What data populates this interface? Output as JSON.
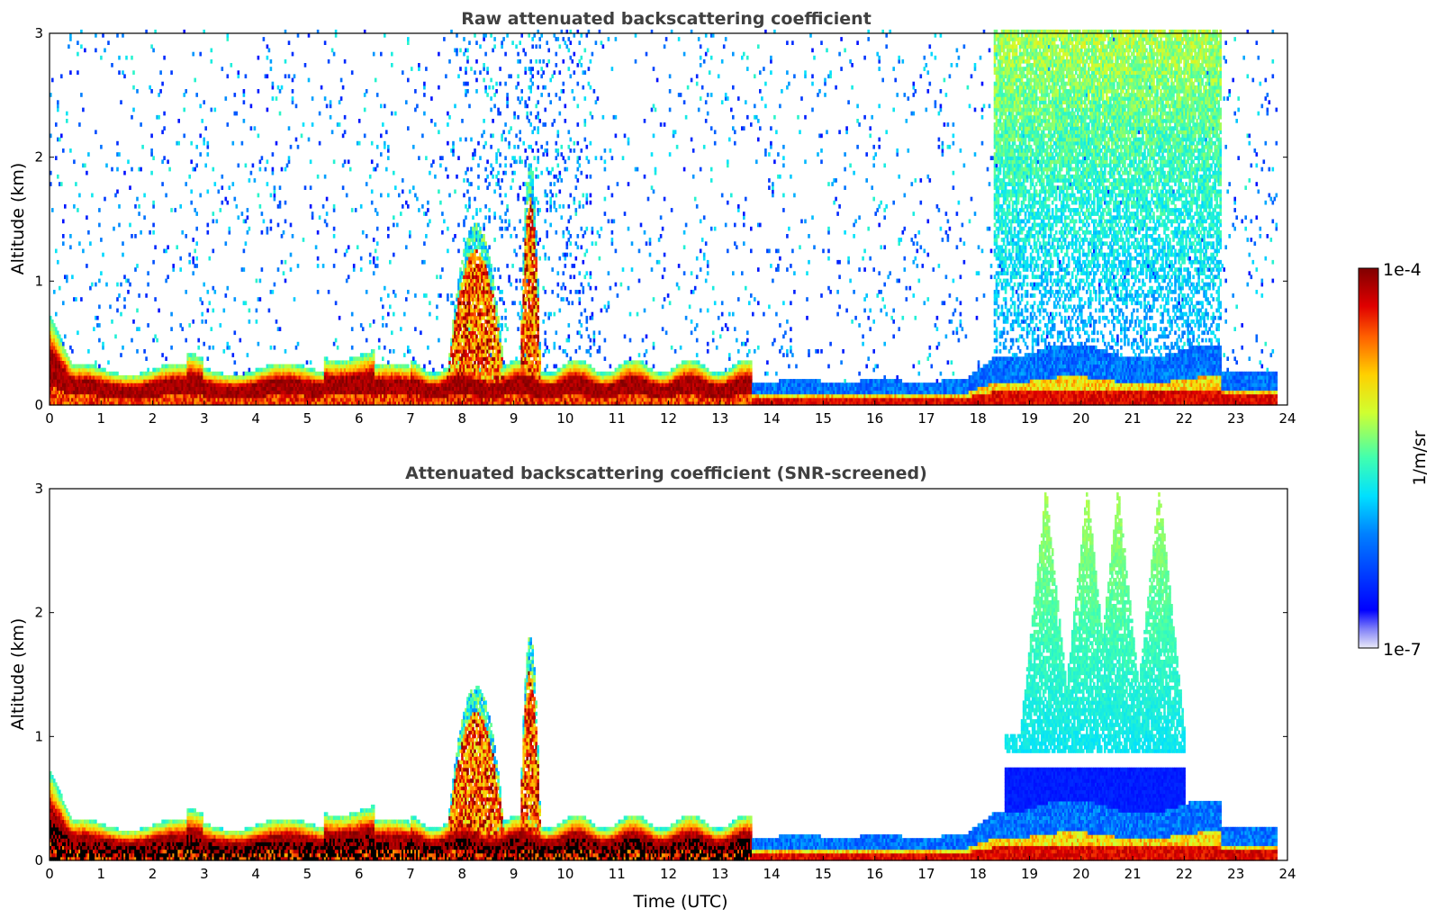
{
  "chart_data": [
    {
      "type": "heatmap",
      "title": "Raw attenuated backscattering coefficient",
      "xlabel": "",
      "ylabel": "Altitude (km)",
      "xlim": [
        0,
        24
      ],
      "ylim": [
        0,
        3
      ],
      "x_ticks": [
        0,
        1,
        2,
        3,
        4,
        5,
        6,
        7,
        8,
        9,
        10,
        11,
        12,
        13,
        14,
        15,
        16,
        17,
        18,
        19,
        20,
        21,
        22,
        23,
        24
      ],
      "y_ticks": [
        0,
        1,
        2,
        3
      ],
      "colorscale": "jet",
      "log_scale": true,
      "features": [
        {
          "t_start": 0,
          "t_end": 23.8,
          "layer_top_km": 0.3,
          "value": "1e-4"
        },
        {
          "t_start": 7.7,
          "t_end": 8.8,
          "layer_top_km": 1.2,
          "value": "1e-4"
        },
        {
          "t_start": 9.1,
          "t_end": 9.5,
          "layer_top_km": 1.7,
          "value": "1e-4"
        },
        {
          "t_start": 18.3,
          "t_end": 22.7,
          "layer_top_km": 3.0,
          "value": "1e-6"
        }
      ]
    },
    {
      "type": "heatmap",
      "title": "Attenuated backscattering coefficient (SNR-screened)",
      "xlabel": "Time (UTC)",
      "ylabel": "Altitude (km)",
      "xlim": [
        0,
        24
      ],
      "ylim": [
        0,
        3
      ],
      "x_ticks": [
        0,
        1,
        2,
        3,
        4,
        5,
        6,
        7,
        8,
        9,
        10,
        11,
        12,
        13,
        14,
        15,
        16,
        17,
        18,
        19,
        20,
        21,
        22,
        23,
        24
      ],
      "y_ticks": [
        0,
        1,
        2,
        3
      ],
      "colorscale": "jet",
      "log_scale": true,
      "features": [
        {
          "t_start": 0,
          "t_end": 23.8,
          "layer_top_km": 0.3,
          "value": "1e-4"
        },
        {
          "t_start": 7.7,
          "t_end": 8.8,
          "layer_top_km": 1.15,
          "value": "1e-4"
        },
        {
          "t_start": 9.1,
          "t_end": 9.5,
          "layer_top_km": 1.55,
          "value": "1e-4"
        },
        {
          "t_start": 18.5,
          "t_end": 22.0,
          "layer_top_km": 3.0,
          "value": "1e-6"
        }
      ]
    }
  ],
  "colorbar": {
    "label": "1/m/sr",
    "max_label": "1e-4",
    "min_label": "1e-7",
    "scale": "log"
  }
}
